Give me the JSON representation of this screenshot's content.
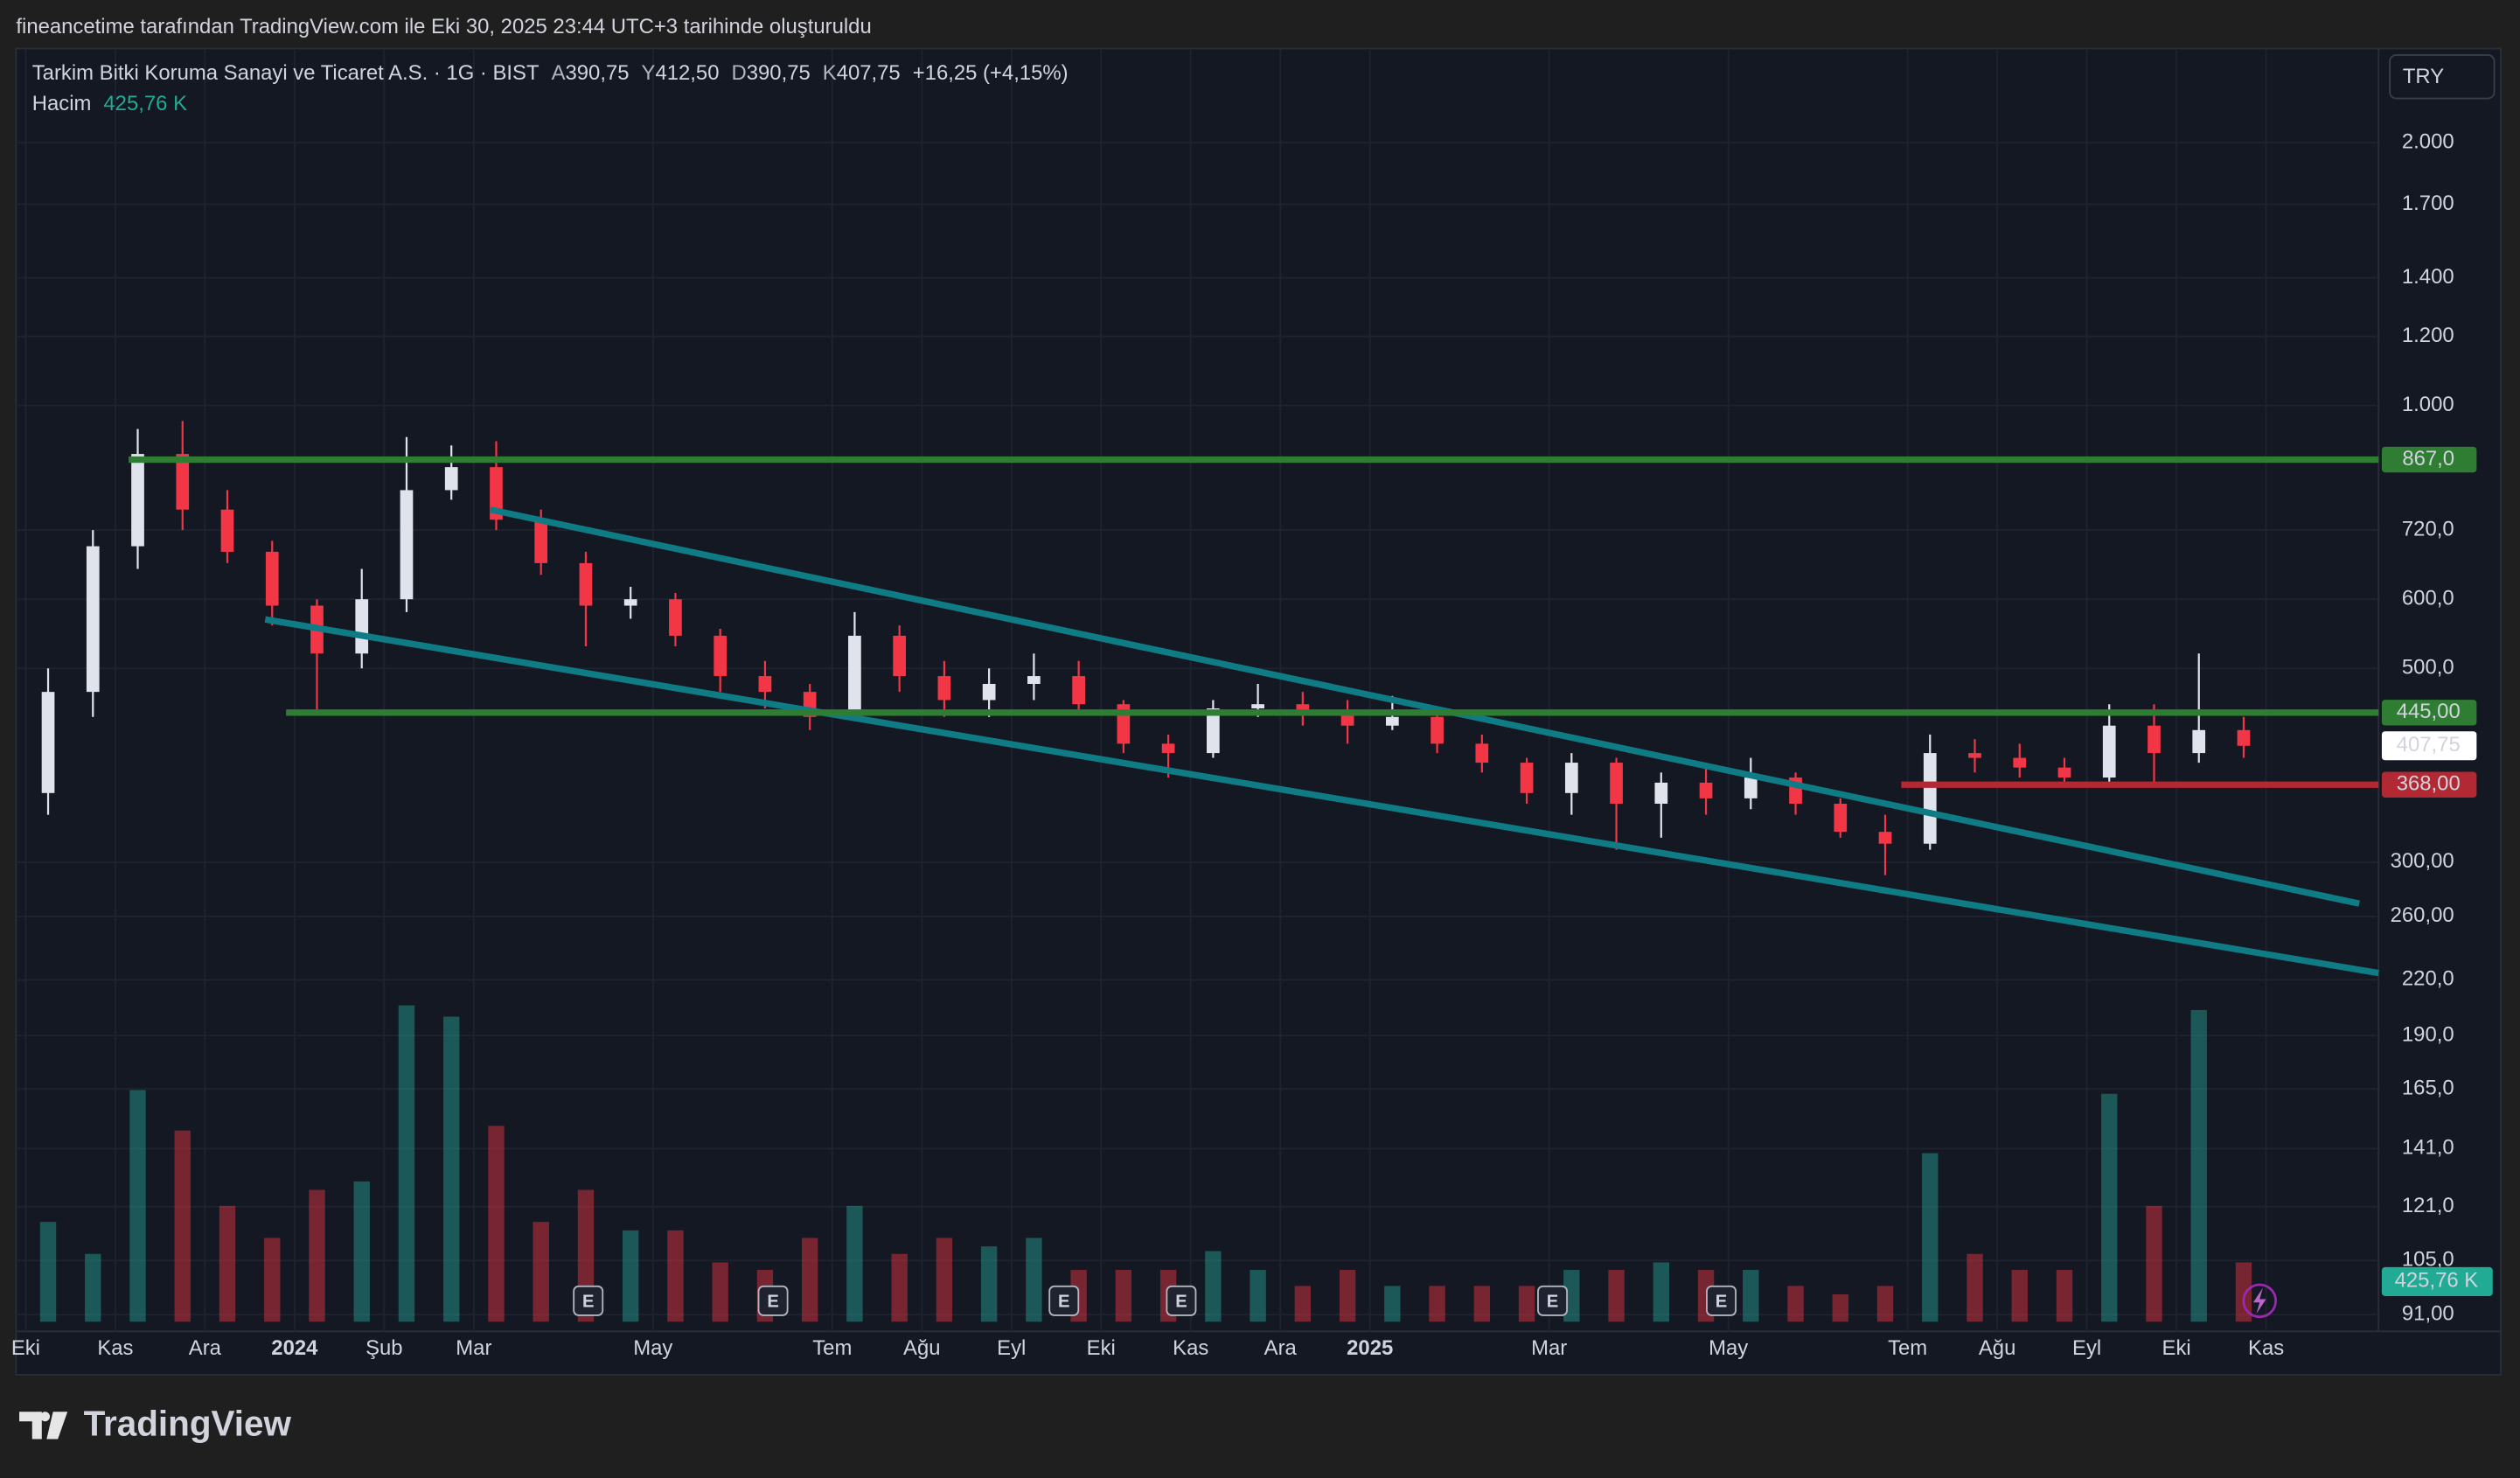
{
  "header": {
    "watermark": "fineancetime tarafından TradingView.com ile Eki 30, 2025 23:44 UTC+3 tarihinde oluşturuldu"
  },
  "legend": {
    "symbol": "Tarkim Bitki Koruma Sanayi ve Ticaret A.S. · 1G · BIST",
    "open_label": "A",
    "open": "390,75",
    "high_label": "Y",
    "high": "412,50",
    "low_label": "D",
    "low": "390,75",
    "close_label": "K",
    "close": "407,75",
    "change": "+16,25 (+4,15%)",
    "volume_label": "Hacim"
  },
  "currency": "TRY",
  "earnings_marker": "E",
  "footer": {
    "brand": "TradingView"
  },
  "chart_data": {
    "type": "candlestick",
    "log": true,
    "grid": true,
    "categories": [
      "Eki",
      null,
      "Kas",
      null,
      "Ara",
      null,
      "2024",
      null,
      "Şub",
      null,
      "Mar",
      null,
      null,
      null,
      "May",
      null,
      null,
      null,
      "Tem",
      null,
      "Ağu",
      null,
      "Eyl",
      null,
      "Eki",
      null,
      "Kas",
      null,
      "Ara",
      null,
      "2025",
      null,
      null,
      null,
      "Mar",
      null,
      null,
      null,
      "May",
      null,
      null,
      null,
      "Tem",
      null,
      "Ağu",
      null,
      "Eyl",
      null,
      "Eki",
      null,
      "Kas"
    ],
    "open": [
      360,
      470,
      690,
      880,
      760,
      680,
      590,
      520,
      600,
      800,
      850,
      740,
      660,
      590,
      600,
      545,
      490,
      470,
      440,
      545,
      490,
      460,
      480,
      490,
      455,
      410,
      400,
      450,
      455,
      445,
      430,
      440,
      410,
      390,
      360,
      390,
      350,
      370,
      355,
      375,
      350,
      325,
      315,
      400,
      395,
      385,
      375,
      430,
      400,
      425,
      null
    ],
    "high": [
      500,
      720,
      940,
      960,
      800,
      700,
      600,
      650,
      920,
      900,
      910,
      760,
      680,
      620,
      610,
      555,
      510,
      480,
      580,
      560,
      510,
      500,
      520,
      510,
      460,
      420,
      460,
      480,
      470,
      460,
      465,
      450,
      420,
      395,
      400,
      395,
      380,
      390,
      395,
      380,
      355,
      340,
      420,
      415,
      410,
      395,
      455,
      455,
      520,
      440,
      null
    ],
    "low": [
      340,
      440,
      650,
      720,
      660,
      560,
      445,
      500,
      580,
      780,
      720,
      640,
      530,
      570,
      530,
      470,
      450,
      425,
      440,
      470,
      440,
      440,
      460,
      445,
      400,
      375,
      395,
      440,
      430,
      410,
      425,
      400,
      380,
      350,
      340,
      310,
      320,
      340,
      345,
      340,
      320,
      290,
      310,
      380,
      375,
      365,
      370,
      365,
      390,
      395,
      null
    ],
    "close": [
      470,
      690,
      880,
      760,
      680,
      590,
      520,
      600,
      800,
      850,
      740,
      660,
      590,
      600,
      545,
      490,
      470,
      440,
      545,
      490,
      460,
      480,
      490,
      455,
      410,
      400,
      450,
      455,
      445,
      430,
      440,
      410,
      390,
      360,
      390,
      350,
      370,
      355,
      375,
      350,
      325,
      315,
      400,
      395,
      385,
      375,
      430,
      400,
      425,
      407.75,
      null
    ],
    "volume": [
      1060000,
      720000,
      2460000,
      2030000,
      1230000,
      890000,
      1400000,
      1490000,
      3360000,
      3240000,
      2080000,
      1060000,
      1400000,
      970000,
      970000,
      630000,
      550000,
      890000,
      1230000,
      720000,
      890000,
      800000,
      890000,
      550000,
      550000,
      550000,
      750000,
      550000,
      380000,
      550000,
      380000,
      380000,
      380000,
      380000,
      550000,
      550000,
      630000,
      550000,
      550000,
      380000,
      290000,
      380000,
      1790000,
      720000,
      550000,
      550000,
      2420000,
      1230000,
      3310000,
      630000,
      null
    ],
    "up_color": "#e0e3eb",
    "down_color": "#f23645",
    "volume_up_color": "#26a69a",
    "volume_down_color": "#f23645",
    "ylim": [
      87.1,
      2562
    ],
    "yticks": [
      {
        "value": 2000,
        "label": "2.000"
      },
      {
        "value": 1700,
        "label": "1.700"
      },
      {
        "value": 1400,
        "label": "1.400"
      },
      {
        "value": 1200,
        "label": "1.200"
      },
      {
        "value": 1000,
        "label": "1.000"
      },
      {
        "value": 720,
        "label": "720,0"
      },
      {
        "value": 600,
        "label": "600,0"
      },
      {
        "value": 500,
        "label": "500,0"
      },
      {
        "value": 300,
        "label": "300,00"
      },
      {
        "value": 260,
        "label": "260,00"
      },
      {
        "value": 220,
        "label": "220,0"
      },
      {
        "value": 190,
        "label": "190,0"
      },
      {
        "value": 165,
        "label": "165,0"
      },
      {
        "value": 141,
        "label": "141,0"
      },
      {
        "value": 121,
        "label": "121,0"
      },
      {
        "value": 105,
        "label": "105,0"
      },
      {
        "value": 91,
        "label": "91,00"
      }
    ],
    "y2lim": [
      0,
      3500000
    ],
    "levels": [
      {
        "value": 867,
        "label": "867,0",
        "color": "#2e7d32"
      },
      {
        "value": 445,
        "label": "445,00",
        "color": "#2e7d32"
      },
      {
        "value": 368,
        "label": "368,00",
        "color": "#b22833"
      }
    ],
    "trendlines": [
      {
        "values": [
          760,
          269
        ],
        "color": "#0f7c85"
      },
      {
        "values": [
          569,
          224
        ],
        "color": "#0f7c85"
      }
    ],
    "last_price": {
      "value": 407.75,
      "label": "407,75"
    },
    "last_volume": {
      "value": 425760,
      "label": "425,76 K",
      "color": "#22ab94"
    }
  }
}
